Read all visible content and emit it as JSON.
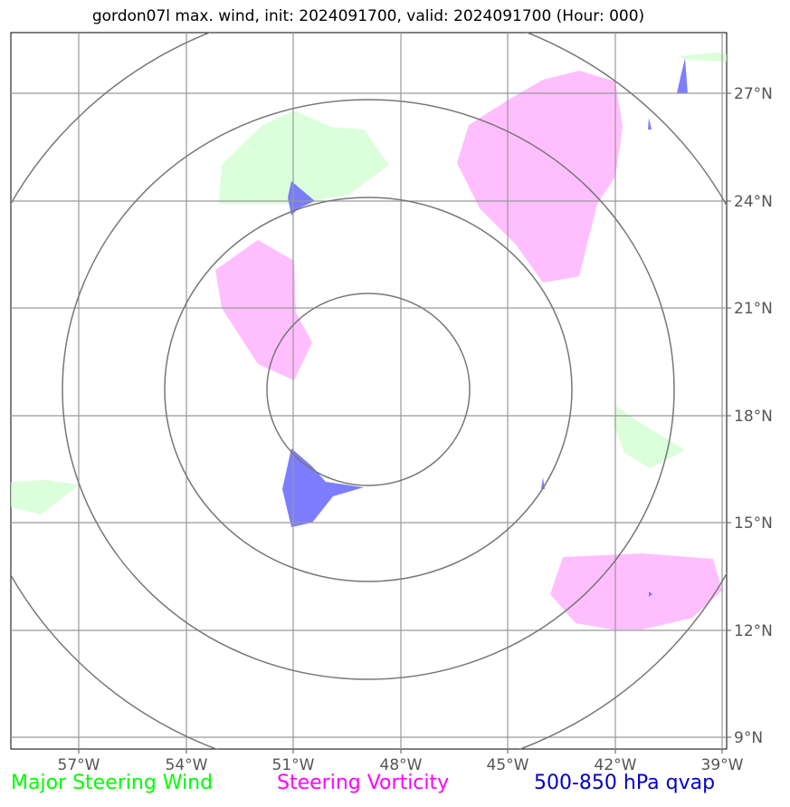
{
  "title": "gordon07l max. wind, init: 2024091700, valid: 2024091700 (Hour: 000)",
  "map": {
    "lat_labels": [
      "27°N",
      "24°N",
      "21°N",
      "18°N",
      "15°N",
      "12°N",
      "9°N"
    ],
    "lon_labels": [
      "57°W",
      "54°W",
      "51°W",
      "48°W",
      "45°W",
      "42°W",
      "39°W"
    ],
    "extent": {
      "lon": [
        -59,
        -39
      ],
      "lat": [
        8.7,
        28.9
      ]
    },
    "ring_color": "#777777",
    "grid_color": "#999999"
  },
  "legend": [
    {
      "label": "Major Steering Wind",
      "color": "#00ff00"
    },
    {
      "label": "Steering Vorticity",
      "color": "#ff00ff"
    },
    {
      "label": "500-850 hPa qvap",
      "color": "#0000cc"
    }
  ],
  "field_colors": {
    "steering_wind": "#ccffcc",
    "vorticity": "#ffaaff",
    "qvap": "#6666ff"
  }
}
